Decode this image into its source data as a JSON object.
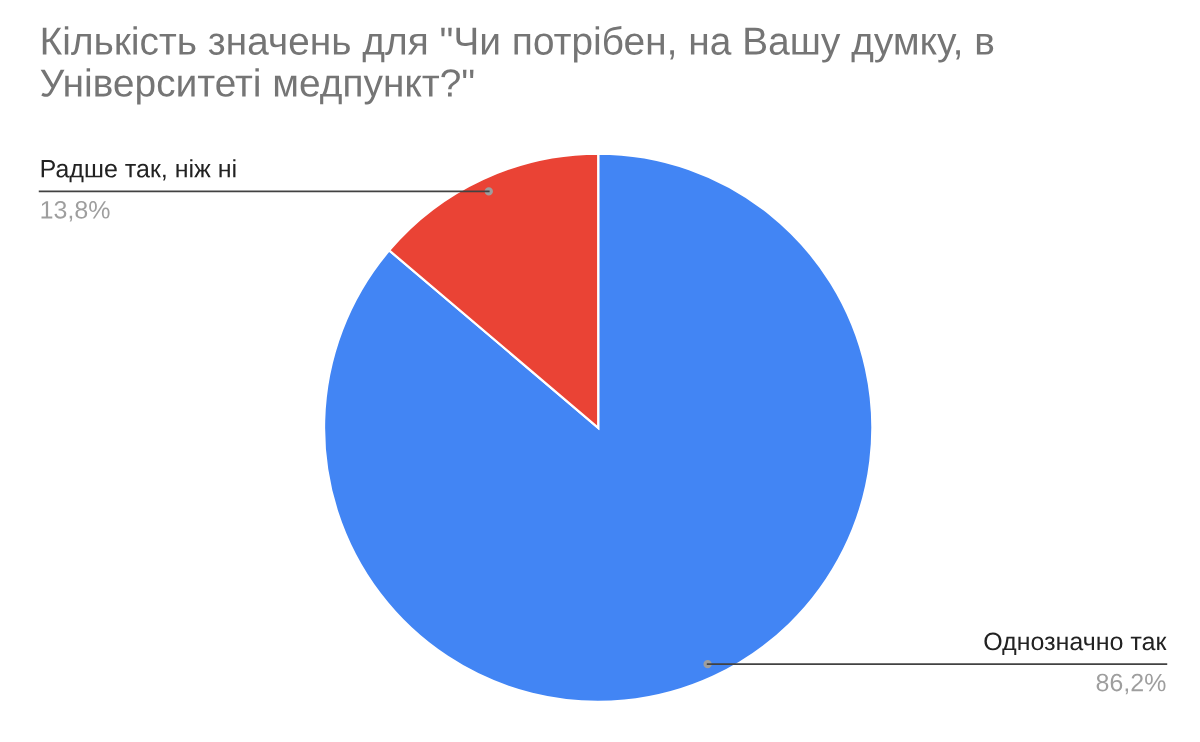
{
  "chart_data": {
    "type": "pie",
    "title": "Кількість значень для \"Чи потрібен, на Вашу думку, в Університеті медпункт?\"",
    "categories": [
      "Однозначно так",
      "Радше так, ніж ні"
    ],
    "values": [
      86.2,
      13.8
    ],
    "colors": [
      "#4285f4",
      "#ea4335"
    ],
    "value_labels": [
      "86,2%",
      "13,8%"
    ],
    "legend": false
  }
}
